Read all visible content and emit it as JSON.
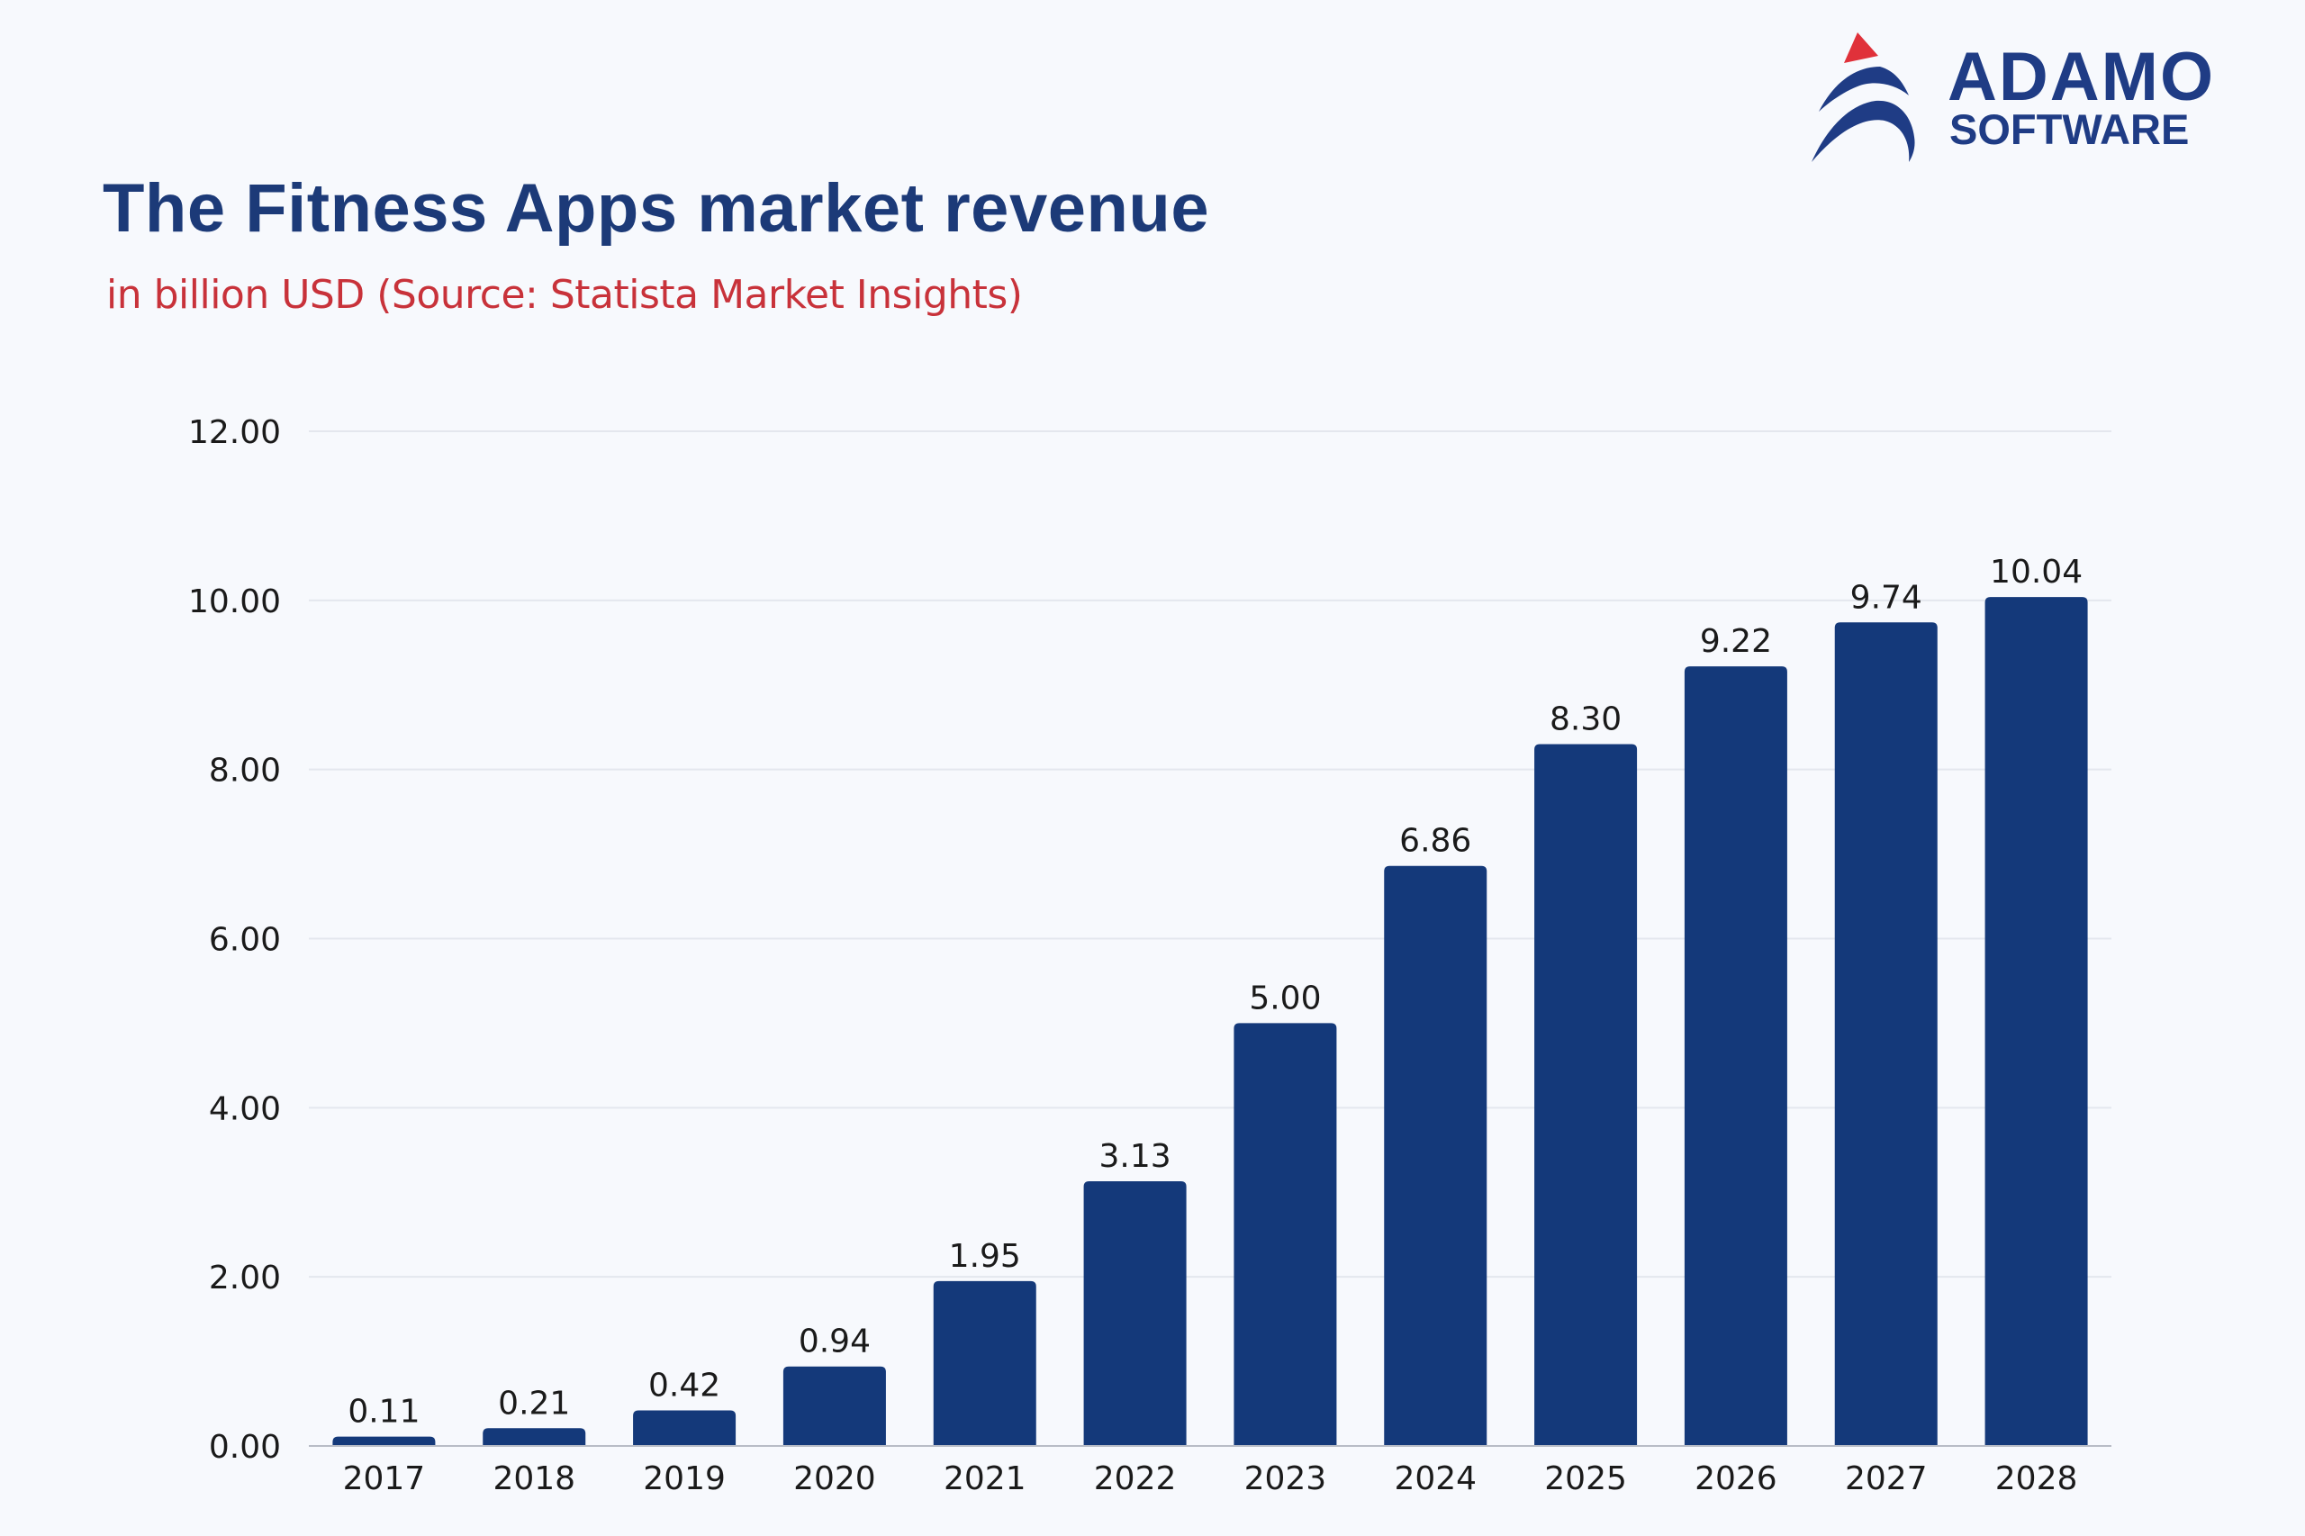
{
  "header": {
    "title": "The Fitness Apps market revenue",
    "subtitle": "in billion USD (Source: Statista Market Insights)"
  },
  "logo": {
    "line1": "ADAMO",
    "line2": "SOFTWARE",
    "colors": {
      "primary": "#1f3c85",
      "accent": "#e0313a"
    }
  },
  "chart_data": {
    "type": "bar",
    "title": "The Fitness Apps market revenue",
    "subtitle": "in billion USD (Source: Statista Market Insights)",
    "xlabel": "",
    "ylabel": "",
    "categories": [
      "2017",
      "2018",
      "2019",
      "2020",
      "2021",
      "2022",
      "2023",
      "2024",
      "2025",
      "2026",
      "2027",
      "2028"
    ],
    "values": [
      0.11,
      0.21,
      0.42,
      0.94,
      1.95,
      3.13,
      5.0,
      6.86,
      8.3,
      9.22,
      9.74,
      10.04
    ],
    "value_labels": [
      "0.11",
      "0.21",
      "0.42",
      "0.94",
      "1.95",
      "3.13",
      "5.00",
      "6.86",
      "8.30",
      "9.22",
      "9.74",
      "10.04"
    ],
    "ylim": [
      0,
      12
    ],
    "yticks": [
      0,
      2,
      4,
      6,
      8,
      10,
      12
    ],
    "ytick_labels": [
      "0.00",
      "2.00",
      "4.00",
      "6.00",
      "8.00",
      "10.00",
      "12.00"
    ],
    "grid": true,
    "legend": "none",
    "bar_color": "#14397a",
    "grid_color": "#e4e7ee"
  }
}
